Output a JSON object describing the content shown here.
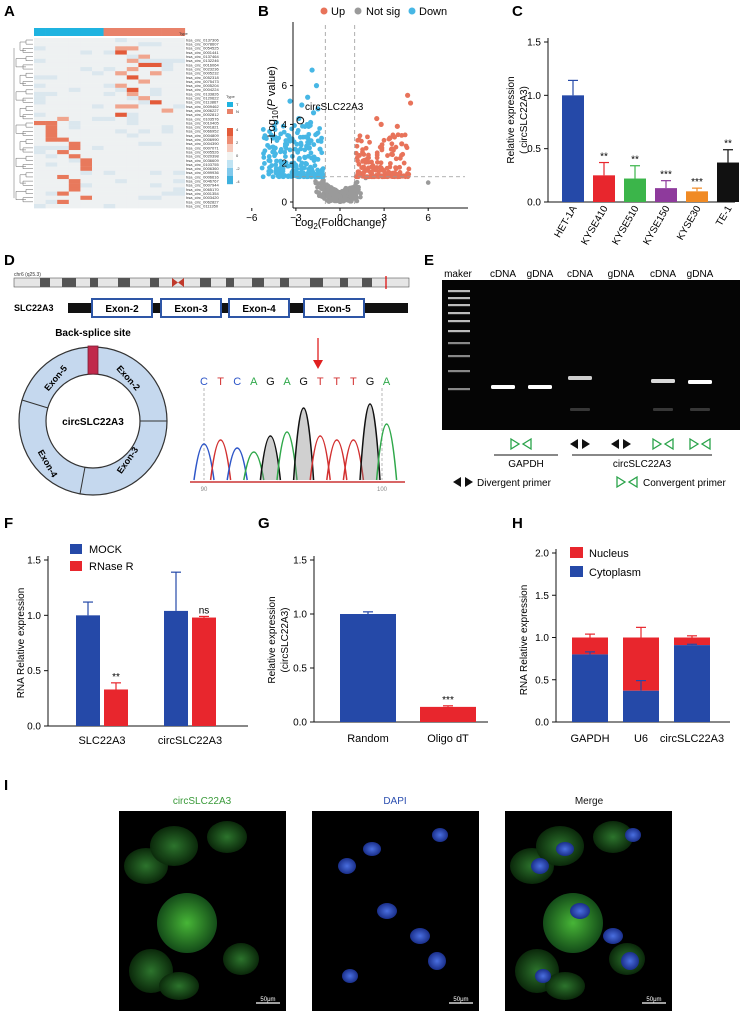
{
  "panels": {
    "A": "A",
    "B": "B",
    "C": "C",
    "D": "D",
    "E": "E",
    "F": "F",
    "G": "G",
    "H": "H",
    "I": "I"
  },
  "heatmap": {
    "type_label": "Type",
    "legend_title": "Type",
    "legend_groups": [
      "T",
      "N"
    ],
    "scale_ticks": [
      "4",
      "2",
      "0",
      "-2",
      "-4"
    ],
    "rows": [
      "hsa_circ_0137306",
      "hsa_circ_0078607",
      "hsa_circ_0054525",
      "hsa_circ_0001441",
      "hsa_circ_0137464",
      "hsa_circ_0132246",
      "hsa_circ_0016064",
      "hsa_circ_0023236",
      "hsa_circ_0005232",
      "hsa_circ_0052318",
      "hsa_circ_0075473",
      "hsa_circ_0005204",
      "hsa_circ_0004224",
      "hsa_circ_0133826",
      "hsa_circ_0120622",
      "hsa_circ_0113867",
      "hsa_circ_0009462",
      "hsa_circ_0006227",
      "hsa_circ_0002812",
      "hsa_circ_0103576",
      "hsa_circ_0010405",
      "hsa_circ_0001821",
      "hsa_circ_0066952",
      "hsa_circ_0004809",
      "hsa_circ_0006990",
      "hsa_circ_0004390",
      "hsa_circ_0007071",
      "hsa_circ_0005526",
      "hsa_circ_0020398",
      "hsa_circ_0036609",
      "hsa_circ_0103755",
      "hsa_circ_0006360",
      "hsa_circ_0099936",
      "hsa_circ_0006616",
      "hsa_circ_0046767",
      "hsa_circ_0007944",
      "hsa_circ_0065170",
      "hsa_circ_0001354",
      "hsa_circ_0003420",
      "hsa_circ_0062827",
      "hsa_circ_0111350"
    ],
    "colors": {
      "T": "#1fb3e0",
      "N": "#e8826a",
      "high": "#e35b3a",
      "mid": "#f3f4f2",
      "low": "#3eb1de"
    }
  },
  "volcano": {
    "legend": [
      "Up",
      "Not sig",
      "Down"
    ],
    "colors": {
      "up": "#e8735a",
      "notsig": "#9a9a9a",
      "down": "#47b7e5"
    },
    "xlabel": "Log2(FoldChange)",
    "ylabel": "-Log10(P value)",
    "xticks": [
      "-6",
      "-3",
      "0",
      "3",
      "6"
    ],
    "yticks": [
      "0",
      "2",
      "4",
      "6"
    ],
    "annotation": "circSLC22A3"
  },
  "chart_data": [
    {
      "panel": "C",
      "type": "bar",
      "categories": [
        "HET-1A",
        "KYSE410",
        "KYSE510",
        "KYSE150",
        "KYSE30",
        "TE-1"
      ],
      "values": [
        1.0,
        0.25,
        0.22,
        0.13,
        0.1,
        0.37
      ],
      "errors": [
        0.14,
        0.12,
        0.12,
        0.07,
        0.03,
        0.12
      ],
      "significance": [
        "",
        "**",
        "**",
        "***",
        "***",
        "**"
      ],
      "colors": [
        "#2549a8",
        "#e8262d",
        "#3bb54a",
        "#8e3a9c",
        "#f08a24",
        "#111111"
      ],
      "ylabel": "Relative expression ( circSLC22A3)",
      "ylim": [
        0,
        1.5
      ],
      "yticks": [
        "0.0",
        "0.5",
        "1.0",
        "1.5"
      ]
    },
    {
      "panel": "F",
      "type": "bar",
      "categories": [
        "SLC22A3",
        "circSLC22A3"
      ],
      "series": [
        {
          "name": "MOCK",
          "values": [
            1.0,
            1.04
          ],
          "errors": [
            0.12,
            0.35
          ],
          "color": "#2549a8"
        },
        {
          "name": "RNase R",
          "values": [
            0.33,
            0.98
          ],
          "errors": [
            0.06,
            0.01
          ],
          "color": "#e8262d"
        }
      ],
      "significance": [
        "**",
        "ns"
      ],
      "ylabel": "RNA Relative expression",
      "ylim": [
        0,
        1.5
      ],
      "yticks": [
        "0.0",
        "0.5",
        "1.0",
        "1.5"
      ]
    },
    {
      "panel": "G",
      "type": "bar",
      "categories": [
        "Random",
        "Oligo dT"
      ],
      "values": [
        1.0,
        0.14
      ],
      "errors": [
        0.02,
        0.01
      ],
      "significance": [
        "",
        "***"
      ],
      "colors": [
        "#2549a8",
        "#e8262d"
      ],
      "ylabel": "Relative expression (circSLC22A3)",
      "ylim": [
        0,
        1.5
      ],
      "yticks": [
        "0.0",
        "0.5",
        "1.0",
        "1.5"
      ]
    },
    {
      "panel": "H",
      "type": "bar",
      "stacked": true,
      "categories": [
        "GAPDH",
        "U6",
        "circSLC22A3"
      ],
      "series": [
        {
          "name": "Cytoplasm",
          "values": [
            0.8,
            0.37,
            0.91
          ],
          "errors": [
            0.03,
            0.12,
            0.01
          ],
          "color": "#2549a8"
        },
        {
          "name": "Nucleus",
          "values": [
            0.2,
            0.63,
            0.09
          ],
          "errors": [
            0.04,
            0.12,
            0.02
          ],
          "color": "#e8262d"
        }
      ],
      "legend": [
        "Nucleus",
        "Cytoplasm"
      ],
      "ylabel": "RNA Relative expression",
      "ylim": [
        0,
        2.0
      ],
      "yticks": [
        "0.0",
        "0.5",
        "1.0",
        "1.5",
        "2.0"
      ]
    }
  ],
  "gene_diagram": {
    "chromosome": "chr6 (q25.3)",
    "gene": "SLC22A3",
    "exons": [
      "Exon-2",
      "Exon-3",
      "Exon-4",
      "Exon-5"
    ],
    "backsplice_label": "Back-splice site",
    "ring_center": "circSLC22A3",
    "ring_segments": [
      "Exon-5",
      "Exon-2",
      "Exon-3",
      "Exon-4"
    ],
    "sequence": [
      "C",
      "T",
      "C",
      "A",
      "G",
      "A",
      "G",
      "T",
      "T",
      "T",
      "G",
      "A"
    ],
    "trace_ticks": [
      "90",
      "100"
    ]
  },
  "gel": {
    "lanes": [
      "maker",
      "cDNA",
      "gDNA",
      "cDNA",
      "gDNA",
      "cDNA",
      "gDNA"
    ],
    "group_gapdh": "GAPDH",
    "group_circ": "circSLC22A3",
    "legend_divergent": "Divergent primer",
    "legend_convergent": "Convergent primer"
  },
  "fish": {
    "channels": [
      "circSLC22A3",
      "DAPI",
      "Merge"
    ],
    "channel_colors": [
      "#3a9a3a",
      "#2c4fb0",
      "#111111"
    ],
    "scalebar": "50μm"
  }
}
